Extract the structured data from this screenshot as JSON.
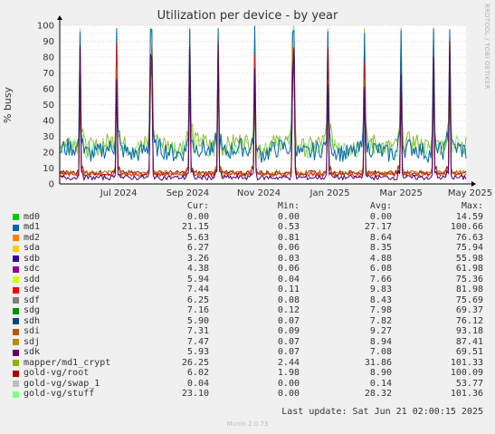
{
  "title": "Utilization per device - by year",
  "side_label": "RRDTOOL / TOBI OETIKER",
  "chart_data": {
    "type": "line",
    "title": "Utilization per device - by year",
    "ylabel": "% busy",
    "ylim": [
      0,
      100
    ],
    "y_ticks": [
      "0",
      "10",
      "20",
      "30",
      "40",
      "50",
      "60",
      "70",
      "80",
      "90",
      "100"
    ],
    "x_ticks": [
      "Jul 2024",
      "Sep 2024",
      "Nov 2024",
      "Jan 2025",
      "Mar 2025",
      "May 2025"
    ],
    "x_tick_pos": [
      0.145,
      0.315,
      0.49,
      0.665,
      0.84,
      1.01
    ],
    "spike_pos": [
      0.05,
      0.14,
      0.225,
      0.32,
      0.39,
      0.48,
      0.575,
      0.66,
      0.75,
      0.84,
      0.92,
      0.96
    ],
    "grid": true,
    "series": [
      {
        "name": "gold-vg/stuff",
        "color": "#7ee87e",
        "base": 23
      },
      {
        "name": "mapper/md1_crypt",
        "color": "#8fb52a",
        "base": 25
      },
      {
        "name": "md1",
        "color": "#0066b3",
        "base": 21
      },
      {
        "name": "gold-vg/root",
        "color": "#8b0000",
        "base": 7
      },
      {
        "name": "sde",
        "color": "#e31a1c",
        "base": 6
      },
      {
        "name": "sdi",
        "color": "#b86b00",
        "base": 7
      },
      {
        "name": "sdk",
        "color": "#4d0066",
        "base": 4
      }
    ]
  },
  "legend": {
    "headers": {
      "cur": "Cur:",
      "min": "Min:",
      "avg": "Avg:",
      "max": "Max:"
    },
    "rows": [
      {
        "name": "md0",
        "color": "#00cc00",
        "cur": "0.00",
        "min": "0.00",
        "avg": "0.00",
        "max": "14.59"
      },
      {
        "name": "md1",
        "color": "#0066b3",
        "cur": "21.15",
        "min": "0.53",
        "avg": "27.17",
        "max": "100.66"
      },
      {
        "name": "md2",
        "color": "#ff8000",
        "cur": "5.63",
        "min": "0.81",
        "avg": "8.64",
        "max": "76.63"
      },
      {
        "name": "sda",
        "color": "#ffcc00",
        "cur": "6.27",
        "min": "0.06",
        "avg": "8.35",
        "max": "75.94"
      },
      {
        "name": "sdb",
        "color": "#330099",
        "cur": "3.26",
        "min": "0.03",
        "avg": "4.88",
        "max": "55.98"
      },
      {
        "name": "sdc",
        "color": "#990099",
        "cur": "4.38",
        "min": "0.06",
        "avg": "6.08",
        "max": "61.98"
      },
      {
        "name": "sdd",
        "color": "#ccff00",
        "cur": "5.94",
        "min": "0.04",
        "avg": "7.66",
        "max": "75.36"
      },
      {
        "name": "sde",
        "color": "#ff0000",
        "cur": "7.44",
        "min": "0.11",
        "avg": "9.83",
        "max": "81.98"
      },
      {
        "name": "sdf",
        "color": "#808080",
        "cur": "6.25",
        "min": "0.08",
        "avg": "8.43",
        "max": "75.69"
      },
      {
        "name": "sdg",
        "color": "#008f00",
        "cur": "7.16",
        "min": "0.12",
        "avg": "7.98",
        "max": "69.37"
      },
      {
        "name": "sdh",
        "color": "#00487d",
        "cur": "5.90",
        "min": "0.07",
        "avg": "7.82",
        "max": "76.12"
      },
      {
        "name": "sdi",
        "color": "#b35a00",
        "cur": "7.31",
        "min": "0.09",
        "avg": "9.27",
        "max": "93.18"
      },
      {
        "name": "sdj",
        "color": "#b38f00",
        "cur": "7.47",
        "min": "0.07",
        "avg": "8.94",
        "max": "87.41"
      },
      {
        "name": "sdk",
        "color": "#6b006b",
        "cur": "5.93",
        "min": "0.07",
        "avg": "7.08",
        "max": "69.51"
      },
      {
        "name": "mapper/md1_crypt",
        "color": "#8fb300",
        "cur": "26.25",
        "min": "2.44",
        "avg": "31.86",
        "max": "101.33"
      },
      {
        "name": "gold-vg/root",
        "color": "#b30000",
        "cur": "6.02",
        "min": "1.98",
        "avg": "8.90",
        "max": "100.09"
      },
      {
        "name": "gold-vg/swap_1",
        "color": "#bebebe",
        "cur": "0.04",
        "min": "0.00",
        "avg": "0.14",
        "max": "53.77"
      },
      {
        "name": "gold-vg/stuff",
        "color": "#80ff80",
        "cur": "23.10",
        "min": "0.00",
        "avg": "28.32",
        "max": "101.36"
      }
    ]
  },
  "last_update": "Last update: Sat Jun 21 02:00:15 2025",
  "footer": "Munin 2.0.73"
}
